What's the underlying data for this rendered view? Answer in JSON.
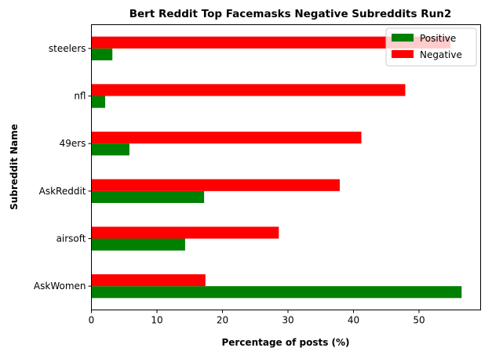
{
  "chart_data": {
    "type": "bar",
    "orientation": "horizontal",
    "title": "Bert Reddit Top Facemasks Negative Subreddits Run2",
    "xlabel": "Percentage of posts (%)",
    "ylabel": "Subreddit Name",
    "categories": [
      "AskWomen",
      "airsoft",
      "AskReddit",
      "49ers",
      "nfl",
      "steelers"
    ],
    "series": [
      {
        "name": "Positive",
        "color": "#008000",
        "values": [
          56.5,
          14.3,
          17.2,
          5.8,
          2.1,
          3.2
        ]
      },
      {
        "name": "Negative",
        "color": "#ff0000",
        "values": [
          17.4,
          28.6,
          37.9,
          41.2,
          47.9,
          54.8
        ]
      }
    ],
    "xlim": [
      0,
      59.4
    ],
    "xticks": [
      0,
      10,
      20,
      30,
      40,
      50
    ],
    "grid": false,
    "legend_position": "top-right"
  }
}
